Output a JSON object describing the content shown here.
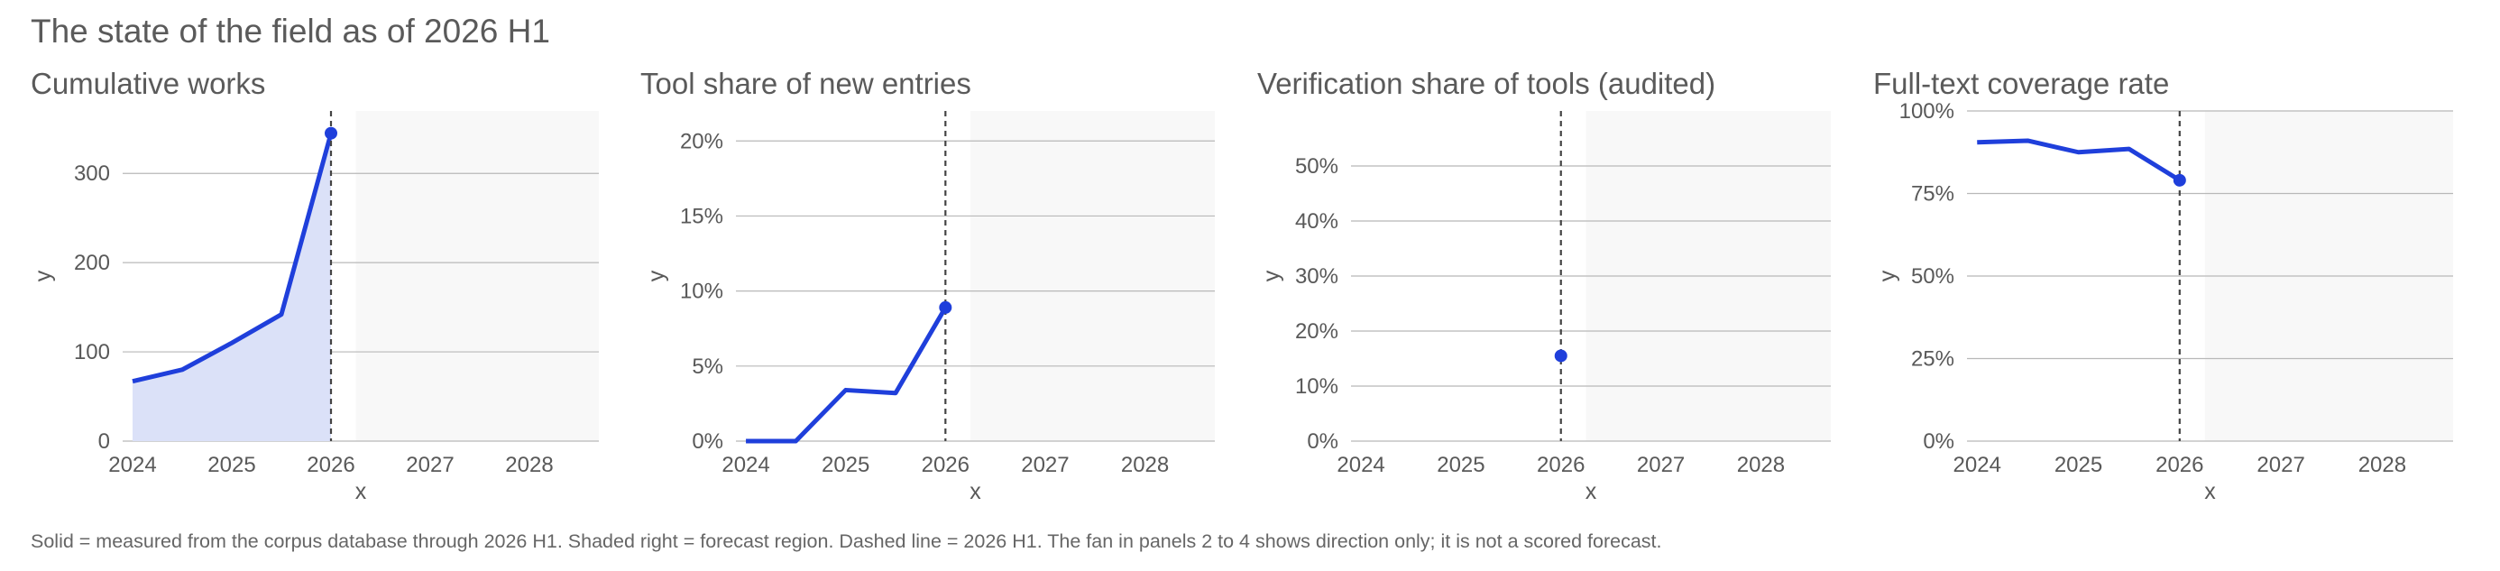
{
  "main_title": "The state of the field as of 2026 H1",
  "footnote": "Solid = measured from the corpus database through 2026 H1. Shaded right = forecast region. Dashed line = 2026 H1. The fan in panels 2 to 4 shows direction only; it is not a scored forecast.",
  "colors": {
    "series": "#1f3fdb",
    "fill": "#dbe1f8",
    "forecast_region": "#f8f8f8",
    "grid": "#b8b8b8",
    "text": "#595959",
    "dashed_line": "#444444"
  },
  "chart_data": [
    {
      "type": "area",
      "title": "Cumulative works",
      "xlabel": "x",
      "ylabel": "y",
      "xlim": [
        2023.9,
        2028.7
      ],
      "ylim": [
        0,
        370
      ],
      "xticks": [
        2024,
        2025,
        2026,
        2027,
        2028
      ],
      "yticks": [
        0,
        100,
        200,
        300
      ],
      "ytick_labels": [
        "0",
        "100",
        "200",
        "300"
      ],
      "x": [
        2024.0,
        2024.5,
        2025.0,
        2025.5,
        2026.0
      ],
      "y": [
        67,
        80,
        110,
        142,
        345
      ],
      "marker_at": [
        2026.0,
        345
      ],
      "marker_line": 2026.0,
      "forecast_start": 2026.25,
      "grid": true,
      "fill": true
    },
    {
      "type": "line",
      "title": "Tool share of new entries",
      "xlabel": "x",
      "ylabel": "y",
      "xlim": [
        2023.9,
        2028.7
      ],
      "ylim": [
        0,
        0.22
      ],
      "xticks": [
        2024,
        2025,
        2026,
        2027,
        2028
      ],
      "yticks": [
        0,
        0.05,
        0.1,
        0.15,
        0.2
      ],
      "ytick_labels": [
        "0%",
        "5%",
        "10%",
        "15%",
        "20%"
      ],
      "x": [
        2024.0,
        2024.5,
        2025.0,
        2025.5,
        2026.0
      ],
      "y": [
        0.0,
        0.0,
        0.034,
        0.032,
        0.089
      ],
      "marker_at": [
        2026.0,
        0.089
      ],
      "marker_line": 2026.0,
      "forecast_start": 2026.25,
      "grid": true,
      "fill": false
    },
    {
      "type": "scatter",
      "title": "Verification share of tools (audited)",
      "xlabel": "x",
      "ylabel": "y",
      "xlim": [
        2023.9,
        2028.7
      ],
      "ylim": [
        0,
        0.6
      ],
      "xticks": [
        2024,
        2025,
        2026,
        2027,
        2028
      ],
      "yticks": [
        0,
        0.1,
        0.2,
        0.3,
        0.4,
        0.5
      ],
      "ytick_labels": [
        "0%",
        "10%",
        "20%",
        "30%",
        "40%",
        "50%"
      ],
      "x": [
        2026.0
      ],
      "y": [
        0.155
      ],
      "marker_at": [
        2026.0,
        0.155
      ],
      "marker_line": 2026.0,
      "forecast_start": 2026.25,
      "grid": true,
      "fill": false
    },
    {
      "type": "line",
      "title": "Full-text coverage rate",
      "xlabel": "x",
      "ylabel": "y",
      "xlim": [
        2023.9,
        2028.7
      ],
      "ylim": [
        0,
        1.0
      ],
      "xticks": [
        2024,
        2025,
        2026,
        2027,
        2028
      ],
      "yticks": [
        0,
        0.25,
        0.5,
        0.75,
        1.0
      ],
      "ytick_labels": [
        "0%",
        "25%",
        "50%",
        "75%",
        "100%"
      ],
      "x": [
        2024.0,
        2024.5,
        2025.0,
        2025.5,
        2026.0
      ],
      "y": [
        0.905,
        0.91,
        0.875,
        0.885,
        0.79
      ],
      "marker_at": [
        2026.0,
        0.79
      ],
      "marker_line": 2026.0,
      "forecast_start": 2026.25,
      "grid": true,
      "fill": false
    }
  ]
}
